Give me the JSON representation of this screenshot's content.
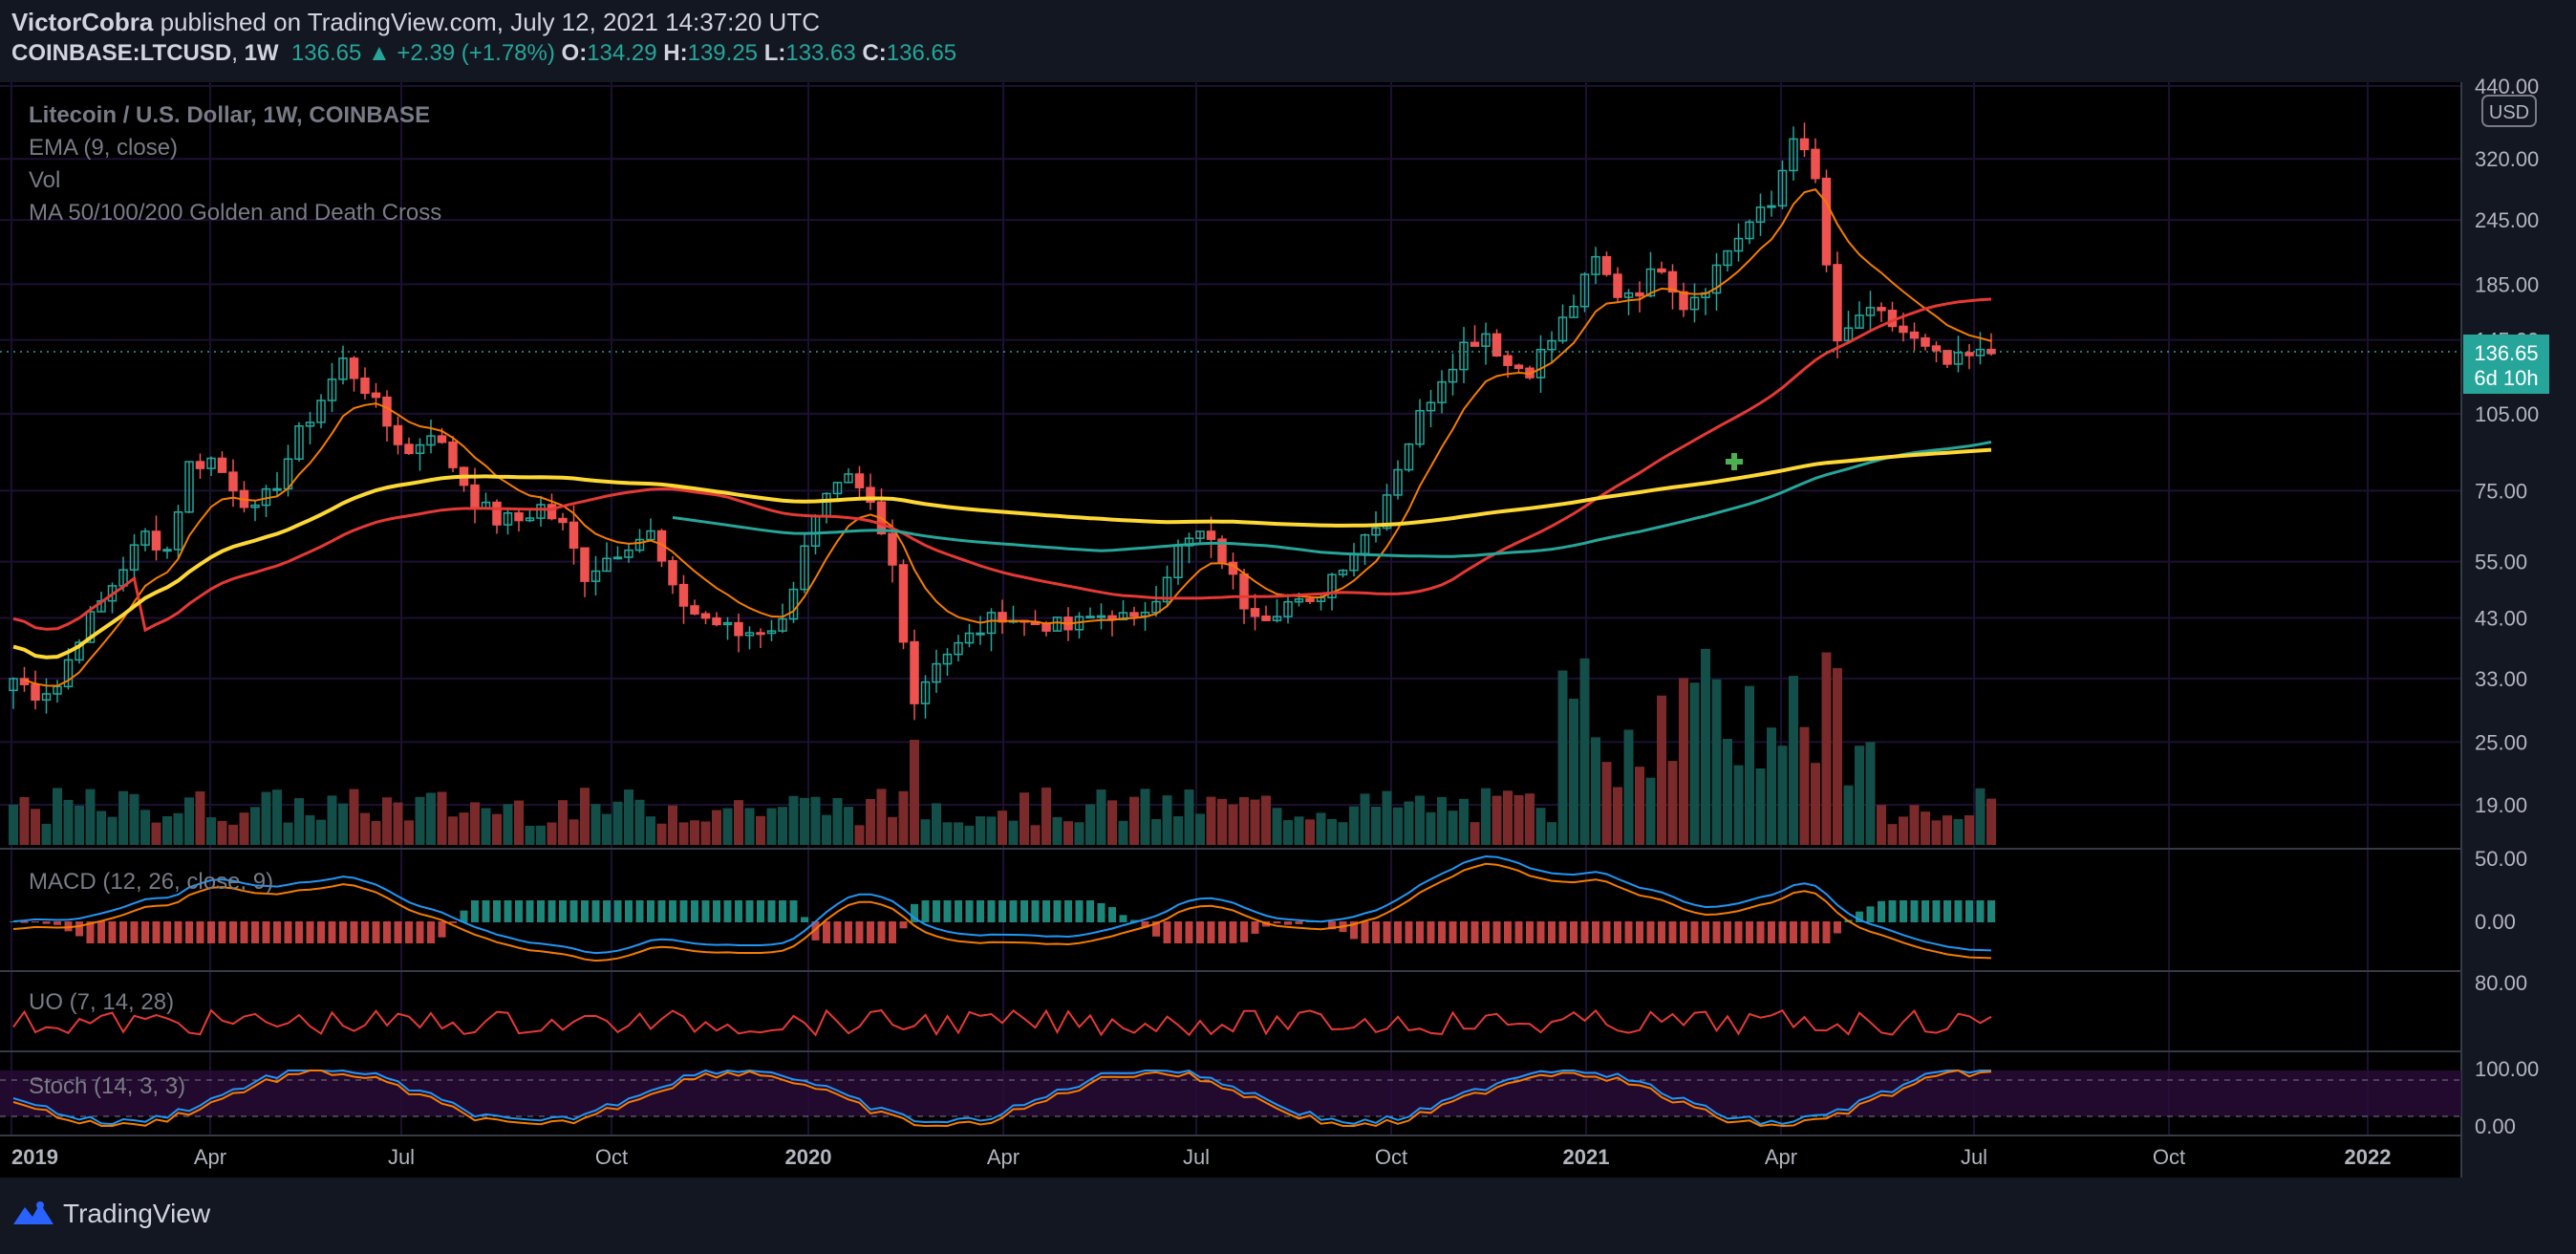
{
  "header": {
    "author": "VictorCobra",
    "published_text": "published on TradingView.com, July 12, 2021 14:37:20 UTC",
    "symbol": "COINBASE:LTCUSD",
    "interval": "1W",
    "price": "136.65",
    "change": "▲ +2.39 (+1.78%)",
    "o_label": "O:",
    "o": "134.29",
    "h_label": "H:",
    "h": "139.25",
    "l_label": "L:",
    "l": "133.63",
    "c_label": "C:",
    "c": "136.65"
  },
  "legend": {
    "title": "Litecoin / U.S. Dollar, 1W, COINBASE",
    "ema": "EMA (9, close)",
    "vol": "Vol",
    "ma": "MA 50/100/200 Golden and Death Cross",
    "macd": "MACD (12, 26, close, 9)",
    "uo": "UO (7, 14, 28)",
    "stoch": "Stoch (14, 3, 3)"
  },
  "price_axis": {
    "currency": "USD",
    "current_price": "136.65",
    "countdown": "6d 10h"
  },
  "footer": {
    "brand": "TradingView"
  },
  "colors": {
    "bg": "#131722",
    "up": "#26a69a",
    "down": "#ef5350",
    "ema": "#f57c00",
    "ma50": "#e53935",
    "ma100": "#26a69a",
    "ma200": "#fdd835",
    "macd": "#2196f3",
    "signal": "#f57c00",
    "uo": "#e53935",
    "stoch_k": "#2196f3",
    "stoch_d": "#f57c00"
  },
  "chart_data": {
    "type": "candlestick",
    "interval": "1W",
    "y_scale": "log",
    "y_ticks": [
      "440.00",
      "320.00",
      "245.00",
      "185.00",
      "145.00",
      "105.00",
      "75.00",
      "55.00",
      "43.00",
      "33.00",
      "25.00",
      "19.00"
    ],
    "x_ticks": [
      "2019",
      "Apr",
      "Jul",
      "Oct",
      "2020",
      "Apr",
      "Jul",
      "Oct",
      "2021",
      "Apr",
      "Jul",
      "Oct",
      "2022"
    ],
    "close_path": [
      [
        0,
        33
      ],
      [
        2,
        31
      ],
      [
        4,
        32
      ],
      [
        6,
        40
      ],
      [
        8,
        46
      ],
      [
        10,
        54
      ],
      [
        12,
        62
      ],
      [
        14,
        58
      ],
      [
        16,
        84
      ],
      [
        18,
        86
      ],
      [
        20,
        77
      ],
      [
        22,
        68
      ],
      [
        24,
        78
      ],
      [
        26,
        96
      ],
      [
        28,
        112
      ],
      [
        30,
        132
      ],
      [
        32,
        118
      ],
      [
        34,
        100
      ],
      [
        36,
        88
      ],
      [
        38,
        98
      ],
      [
        40,
        84
      ],
      [
        42,
        72
      ],
      [
        44,
        66
      ],
      [
        46,
        66
      ],
      [
        48,
        70
      ],
      [
        50,
        64
      ],
      [
        52,
        52
      ],
      [
        54,
        56
      ],
      [
        56,
        60
      ],
      [
        58,
        62
      ],
      [
        60,
        48
      ],
      [
        62,
        44
      ],
      [
        64,
        42
      ],
      [
        66,
        40
      ],
      [
        68,
        41
      ],
      [
        70,
        42
      ],
      [
        72,
        60
      ],
      [
        74,
        72
      ],
      [
        76,
        78
      ],
      [
        78,
        70
      ],
      [
        80,
        54
      ],
      [
        82,
        30
      ],
      [
        84,
        36
      ],
      [
        86,
        38
      ],
      [
        88,
        41
      ],
      [
        90,
        44
      ],
      [
        92,
        42
      ],
      [
        94,
        42
      ],
      [
        96,
        41
      ],
      [
        98,
        43
      ],
      [
        100,
        44
      ],
      [
        102,
        42
      ],
      [
        104,
        48
      ],
      [
        106,
        58
      ],
      [
        108,
        62
      ],
      [
        110,
        56
      ],
      [
        112,
        46
      ],
      [
        114,
        44
      ],
      [
        116,
        46
      ],
      [
        118,
        45
      ],
      [
        120,
        52
      ],
      [
        122,
        58
      ],
      [
        124,
        66
      ],
      [
        126,
        84
      ],
      [
        128,
        104
      ],
      [
        130,
        124
      ],
      [
        132,
        142
      ],
      [
        134,
        150
      ],
      [
        136,
        130
      ],
      [
        138,
        128
      ],
      [
        140,
        145
      ],
      [
        142,
        170
      ],
      [
        144,
        205
      ],
      [
        146,
        178
      ],
      [
        148,
        182
      ],
      [
        150,
        202
      ],
      [
        152,
        170
      ],
      [
        154,
        185
      ],
      [
        156,
        215
      ],
      [
        158,
        242
      ],
      [
        160,
        260
      ],
      [
        162,
        360
      ],
      [
        164,
        290
      ],
      [
        166,
        140
      ],
      [
        168,
        162
      ],
      [
        170,
        160
      ],
      [
        172,
        150
      ],
      [
        174,
        138
      ],
      [
        176,
        130
      ],
      [
        178,
        134
      ],
      [
        180,
        137
      ]
    ],
    "key_levels": {
      "ath_2021": 420,
      "low_2020_crash": 25
    },
    "current_price": 136.65,
    "ohlc_last": {
      "open": 134.29,
      "high": 139.25,
      "low": 133.63,
      "close": 136.65
    },
    "indicators": [
      "EMA (9, close)",
      "MA 50/100/200 Golden and Death Cross",
      "Vol",
      "MACD (12, 26, close, 9)",
      "UO (7, 14, 28)",
      "Stoch (14, 3, 3)"
    ],
    "macd_ticks": [
      "50.00",
      "0.00"
    ],
    "uo_ticks": [
      "80.00"
    ],
    "stoch_ticks": [
      "100.00",
      "0.00"
    ]
  }
}
